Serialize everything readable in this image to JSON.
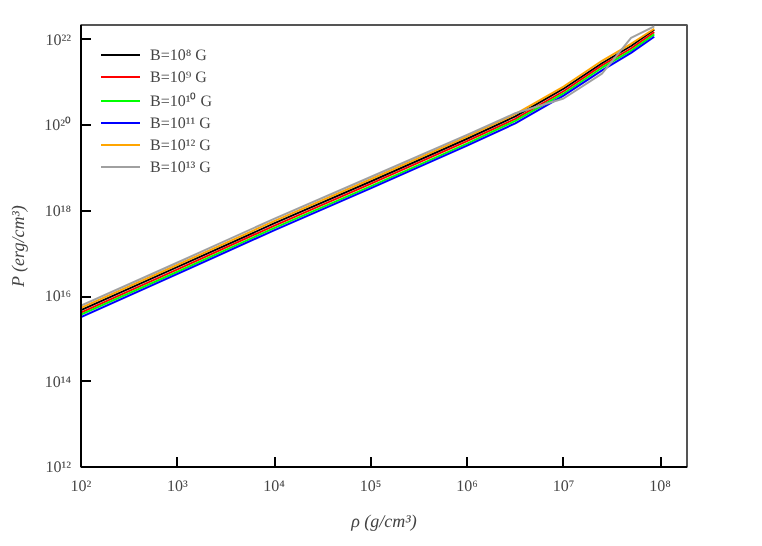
{
  "chart_data": {
    "type": "line",
    "xlabel": "ρ (g/cm³)",
    "ylabel": "P (erg/cm³)",
    "log": "xy",
    "x": [
      100,
      1000,
      10000,
      100000,
      1000000,
      3160000,
      10000000,
      25000000,
      50000000,
      87000000
    ],
    "xlim": [
      100,
      190000000
    ],
    "ylim": [
      1000000000000.0,
      2.2e+22
    ],
    "xticks": [
      {
        "value": 100,
        "label": "10²"
      },
      {
        "value": 1000,
        "label": "10³"
      },
      {
        "value": 10000,
        "label": "10⁴"
      },
      {
        "value": 100000,
        "label": "10⁵"
      },
      {
        "value": 1000000,
        "label": "10⁶"
      },
      {
        "value": 10000000,
        "label": "10⁷"
      },
      {
        "value": 100000000,
        "label": "10⁸"
      }
    ],
    "yticks": [
      {
        "value": 1000000000000.0,
        "label": "10¹²"
      },
      {
        "value": 100000000000000.0,
        "label": "10¹⁴"
      },
      {
        "value": 1e+16,
        "label": "10¹⁶"
      },
      {
        "value": 1e+18,
        "label": "10¹⁸"
      },
      {
        "value": 1e+20,
        "label": "10²⁰"
      },
      {
        "value": 1e+22,
        "label": "10²²"
      }
    ],
    "grid": false,
    "legend": "top left",
    "marker": "none",
    "line_style": "solid",
    "series": [
      {
        "name": "B=10⁸ G",
        "color": "#000000",
        "values": [
          4700000000000000.0,
          4.8e+16,
          5e+17,
          4.8e+18,
          4.8e+19,
          1.6e+20,
          7.1e+20,
          2.8e+21,
          7.1e+21,
          1.7e+22
        ]
      },
      {
        "name": "B=10⁹ G",
        "color": "#ff0000",
        "values": [
          4100000000000000.0,
          4.2e+16,
          4.4e+17,
          4.2e+18,
          4.2e+19,
          1.4e+20,
          6.2e+20,
          2.5e+21,
          6.2e+21,
          1.5e+22
        ]
      },
      {
        "name": "B=10¹⁰ G",
        "color": "#00ff00",
        "values": [
          3700000000000000.0,
          3.7e+16,
          3.9e+17,
          3.7e+18,
          3.7e+19,
          1.25e+20,
          5.5e+20,
          2.2e+21,
          5.5e+21,
          1.33e+22
        ]
      },
      {
        "name": "B=10¹¹ G",
        "color": "#0000ff",
        "values": [
          3200000000000000.0,
          3.3e+16,
          3.45e+17,
          3.3e+18,
          3.3e+19,
          1.1e+20,
          4.9e+20,
          1.9e+21,
          4.9e+21,
          1.17e+22
        ]
      },
      {
        "name": "B=10¹² G",
        "color": "#ffa500",
        "values": [
          5300000000000000.0,
          5.4e+16,
          5.65e+17,
          5.4e+18,
          5.4e+19,
          1.8e+20,
          8e+20,
          3.2e+21,
          8e+21,
          1.8e+22
        ]
      },
      {
        "name": "B=10¹³ G",
        "color": "#a0a0a0",
        "values": [
          6000000000000000.0,
          6.1e+16,
          6.4e+17,
          6.1e+18,
          5.9e+19,
          1.9e+20,
          4.2e+20,
          1.6e+21,
          1.1e+22,
          2.05e+22
        ]
      }
    ]
  }
}
